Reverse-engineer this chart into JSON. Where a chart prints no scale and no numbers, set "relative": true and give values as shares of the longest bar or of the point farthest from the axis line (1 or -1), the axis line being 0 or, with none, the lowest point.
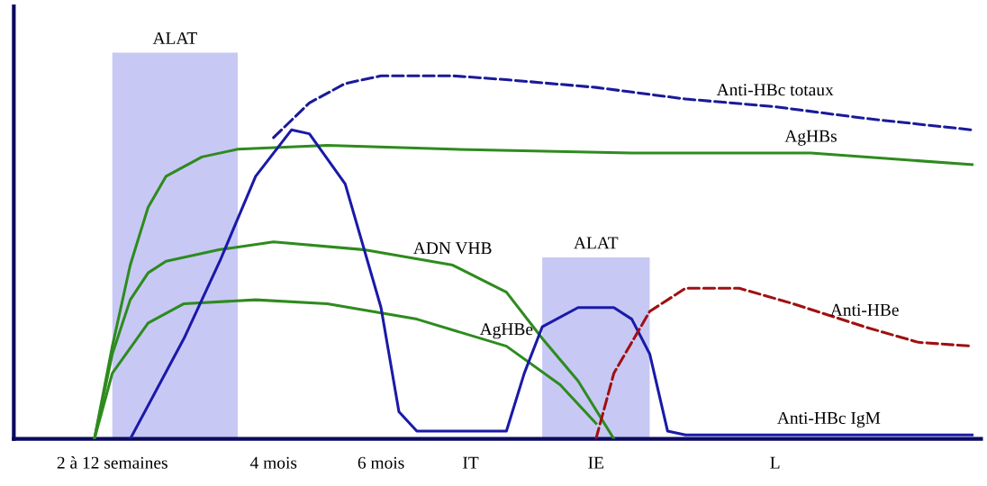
{
  "chart_data": {
    "type": "line",
    "relative": true,
    "grid": false,
    "tick_labels": "x",
    "categories": [
      null,
      null,
      null,
      null,
      null,
      "2 à 12 semaines",
      null,
      null,
      null,
      null,
      null,
      null,
      null,
      null,
      "4 mois",
      null,
      null,
      null,
      null,
      null,
      "6 mois",
      null,
      null,
      null,
      null,
      "IT",
      null,
      null,
      null,
      null,
      null,
      null,
      "IE",
      null,
      null,
      null,
      null,
      null,
      null,
      null,
      null,
      null,
      "L",
      null,
      null,
      null,
      null,
      null,
      null,
      null,
      null,
      null,
      null,
      null
    ],
    "series": [
      {
        "type": "area",
        "name": "ALAT",
        "color": "#c8c8f5",
        "values": [
          null,
          null,
          null,
          null,
          null,
          1.0,
          1.0,
          1.0,
          1.0,
          1.0,
          1.0,
          1.0,
          1.0,
          null,
          null,
          null,
          null,
          null,
          null,
          null,
          null,
          null,
          null,
          null,
          null,
          null,
          null,
          null,
          null,
          null,
          null,
          null,
          null,
          null,
          null,
          null,
          null,
          null,
          null,
          null,
          null,
          null,
          null,
          null,
          null,
          null,
          null,
          null,
          null,
          null,
          null,
          null,
          null,
          null
        ]
      },
      {
        "type": "area",
        "name": "ALAT",
        "color": "#c8c8f5",
        "values": [
          null,
          null,
          null,
          null,
          null,
          null,
          null,
          null,
          null,
          null,
          null,
          null,
          null,
          null,
          null,
          null,
          null,
          null,
          null,
          null,
          null,
          null,
          null,
          null,
          null,
          null,
          null,
          null,
          null,
          0.47,
          0.47,
          0.47,
          0.47,
          0.47,
          0.47,
          0.47,
          null,
          null,
          null,
          null,
          null,
          null,
          null,
          null,
          null,
          null,
          null,
          null,
          null,
          null,
          null,
          null,
          null,
          null
        ]
      },
      {
        "name": "Anti-HBc totaux",
        "color": "#1a1a99",
        "line_style": "dashed",
        "values": [
          null,
          null,
          null,
          null,
          null,
          null,
          null,
          null,
          null,
          null,
          null,
          null,
          null,
          null,
          0.78,
          null,
          0.87,
          null,
          0.92,
          null,
          0.94,
          null,
          0.94,
          null,
          0.94,
          null,
          null,
          0.93,
          null,
          null,
          null,
          null,
          0.91,
          null,
          null,
          null,
          null,
          0.88,
          null,
          null,
          null,
          null,
          0.86,
          null,
          null,
          null,
          null,
          0.83,
          null,
          null,
          null,
          null,
          null,
          0.8
        ]
      },
      {
        "name": "AgHBs",
        "color": "#2e8b1e",
        "line_style": "solid",
        "values": [
          null,
          null,
          null,
          null,
          0,
          0.24,
          0.45,
          0.6,
          0.68,
          null,
          0.73,
          null,
          0.75,
          null,
          null,
          null,
          null,
          0.76,
          null,
          null,
          null,
          null,
          null,
          null,
          0.75,
          null,
          null,
          null,
          null,
          null,
          null,
          null,
          null,
          null,
          0.74,
          null,
          null,
          null,
          null,
          null,
          null,
          null,
          null,
          null,
          0.74,
          null,
          null,
          null,
          null,
          null,
          null,
          null,
          null,
          0.71
        ]
      },
      {
        "name": "ADN VHB",
        "color": "#2e8b1e",
        "line_style": "solid",
        "values": [
          null,
          null,
          null,
          null,
          0,
          0.22,
          0.36,
          0.43,
          0.46,
          null,
          null,
          0.49,
          null,
          null,
          0.51,
          null,
          null,
          null,
          null,
          0.49,
          null,
          null,
          null,
          null,
          0.45,
          null,
          null,
          0.38,
          null,
          0.26,
          null,
          0.15,
          null,
          0,
          null,
          null,
          null,
          null,
          null,
          null,
          null,
          null,
          null,
          null,
          null,
          null,
          null,
          null,
          null,
          null,
          null,
          null,
          null,
          null
        ]
      },
      {
        "name": "AgHBe",
        "color": "#2e8b1e",
        "line_style": "solid",
        "values": [
          null,
          null,
          null,
          null,
          0,
          0.17,
          null,
          0.3,
          null,
          0.35,
          null,
          null,
          null,
          0.36,
          null,
          null,
          null,
          0.35,
          null,
          null,
          null,
          null,
          0.31,
          null,
          null,
          null,
          null,
          0.24,
          null,
          null,
          0.14,
          null,
          0.04,
          null,
          null,
          null,
          null,
          null,
          null,
          null,
          null,
          null,
          null,
          null,
          null,
          null,
          null,
          null,
          null,
          null,
          null,
          null,
          null,
          null
        ]
      },
      {
        "name": "Anti-HBc IgM",
        "color": "#1a1aa8",
        "line_style": "solid",
        "values": [
          null,
          null,
          null,
          null,
          null,
          null,
          0,
          null,
          null,
          0.26,
          null,
          0.46,
          null,
          0.68,
          null,
          0.8,
          0.79,
          null,
          0.66,
          null,
          0.34,
          0.07,
          0.02,
          null,
          null,
          null,
          null,
          0.02,
          0.17,
          0.29,
          null,
          0.34,
          null,
          0.34,
          0.31,
          0.22,
          0.02,
          0.01,
          null,
          null,
          null,
          null,
          null,
          null,
          null,
          null,
          null,
          null,
          null,
          null,
          null,
          null,
          null,
          0.01
        ]
      },
      {
        "name": "Anti-HBe",
        "color": "#a01010",
        "line_style": "dashed",
        "values": [
          null,
          null,
          null,
          null,
          null,
          null,
          null,
          null,
          null,
          null,
          null,
          null,
          null,
          null,
          null,
          null,
          null,
          null,
          null,
          null,
          null,
          null,
          null,
          null,
          null,
          null,
          null,
          null,
          null,
          null,
          null,
          null,
          0,
          0.17,
          null,
          0.33,
          null,
          0.39,
          null,
          null,
          0.39,
          null,
          null,
          0.35,
          null,
          null,
          null,
          0.29,
          null,
          null,
          0.25,
          null,
          null,
          0.24
        ]
      }
    ]
  }
}
